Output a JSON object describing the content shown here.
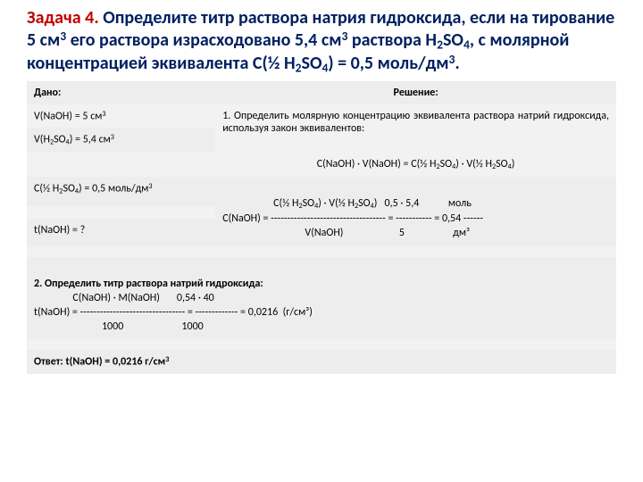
{
  "title_html": "Задача 4. <span class='b'>Определите титр раствора натрия гидроксида, если на тирование 5 см<sup>3</sup> его раствора израсходовано 5,4 см<sup>3</sup> раствора  H<sub>2</sub>SO<sub>4</sub>, с молярной концентрацией эквивалента С(½ H<sub>2</sub>SO<sub>4</sub>) = 0,5 моль/дм<sup>3</sup>.</span>",
  "table": {
    "header_given": "Дано:",
    "header_sol": "Решение:",
    "given": {
      "v_naoh_html": "V(NaOH) = 5 см<sup>3</sup>",
      "v_h2so4_html": "V(H<sub>2</sub>SO<sub>4</sub>) = 5,4 см<sup>3</sup>",
      "c_h2so4_html": "С(½ H<sub>2</sub>SO<sub>4</sub>) = 0,5 моль/дм<sup>3</sup>",
      "t_naoh_html": "t(NaOH) = ?"
    },
    "sol": {
      "step1_intro_html": "1. Определить молярную концентрацию эквивалента раствора натрий гидроксида, используя закон эквивалентов:",
      "step1_eq_html": "С(NaOH) · V(NaOH) = С(½ H<sub>2</sub>SO<sub>4</sub>) · V(½ H<sub>2</sub>SO<sub>4</sub>)",
      "step1_calc_line1_html": "                     С(½ H<sub>2</sub>SO<sub>4</sub>) · V(½ H<sub>2</sub>SO<sub>4</sub>)   0,5 · 5,4            моль",
      "step1_calc_line2": "С(NaOH) = ----------------------------------- = ----------- = 0,54 ------",
      "step1_calc_line3": "                                  V(NaOH)                       5                    дм³",
      "step2_title": "2. Определить титр раствора натрий гидроксида:",
      "step2_line1": "                С(NaOH) · М(NaOH)       0,54 · 40",
      "step2_line2": "t(NaOH) = -------------------------------- = ------------- = 0,0216  (г/см³)",
      "step2_line3": "                            1000                        1000",
      "answer_html": "Ответ: t(NaOH) = 0,0216 г/см<sup>3</sup>"
    }
  }
}
